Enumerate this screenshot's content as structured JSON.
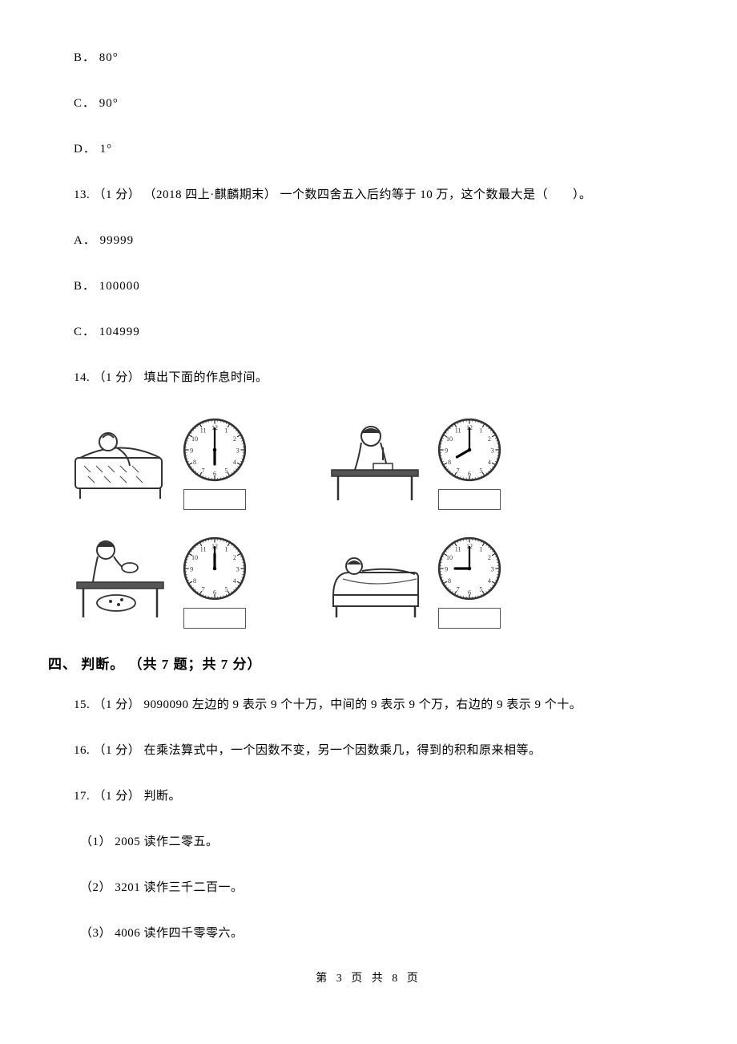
{
  "options_prev": [
    {
      "letter": "B",
      "text": "． 80°"
    },
    {
      "letter": "C",
      "text": "． 90°"
    },
    {
      "letter": "D",
      "text": "． 1°"
    }
  ],
  "q13": {
    "num": "13.",
    "points": "（1 分）",
    "source": "（2018 四上·麒麟期末）",
    "body": "一个数四舍五入后约等于 10 万，这个数最大是（　　）。",
    "options": [
      {
        "letter": "A",
        "text": "． 99999"
      },
      {
        "letter": "B",
        "text": "． 100000"
      },
      {
        "letter": "C",
        "text": "． 104999"
      }
    ]
  },
  "q14": {
    "num": "14.",
    "points": "（1 分）",
    "body": "填出下面的作息时间。",
    "clocks": [
      {
        "hour": 6,
        "minute": 0,
        "scene": "wake"
      },
      {
        "hour": 8,
        "minute": 0,
        "scene": "study"
      },
      {
        "hour": 12,
        "minute": 0,
        "scene": "eat"
      },
      {
        "hour": 9,
        "minute": 0,
        "scene": "sleep"
      }
    ]
  },
  "section4": {
    "heading": "四、 判断。 （共 7 题；共 7 分）"
  },
  "q15": {
    "num": "15.",
    "points": "（1 分）",
    "body": "9090090 左边的 9 表示 9 个十万，中间的 9 表示 9 个万，右边的 9 表示 9 个十。"
  },
  "q16": {
    "num": "16.",
    "points": "（1 分）",
    "body": "在乘法算式中，一个因数不变，另一个因数乘几，得到的积和原来相等。"
  },
  "q17": {
    "num": "17.",
    "points": "（1 分）",
    "body": "判断。",
    "subs": [
      {
        "label": "（1）",
        "text": "2005 读作二零五。"
      },
      {
        "label": "（2）",
        "text": "3201 读作三千二百一。"
      },
      {
        "label": "（3）",
        "text": "4006 读作四千零零六。"
      }
    ]
  },
  "footer": {
    "text": "第 3 页 共 8 页"
  },
  "style": {
    "stroke": "#333333",
    "light": "#888888",
    "bg": "#ffffff"
  }
}
